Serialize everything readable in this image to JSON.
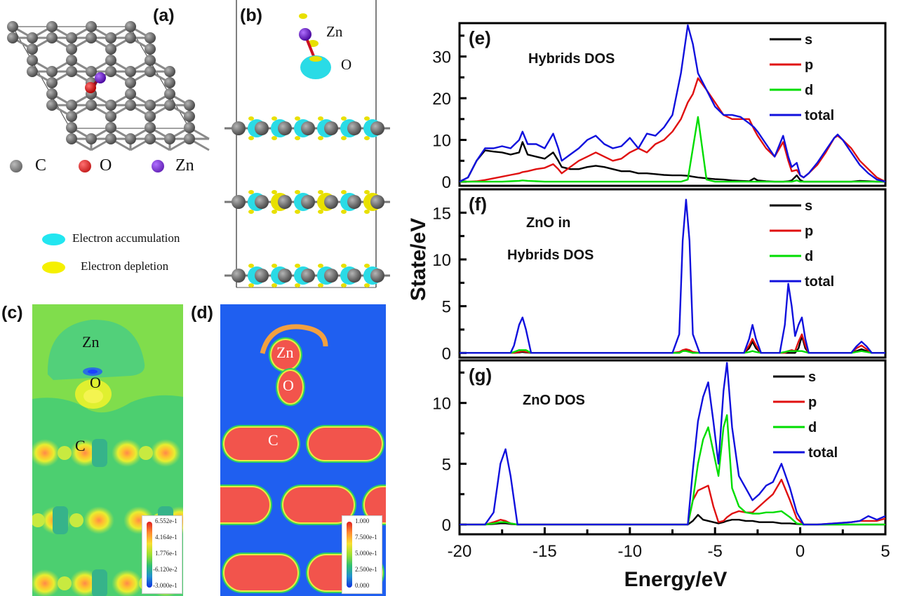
{
  "panels": {
    "a": {
      "label": "(a)",
      "legend": [
        {
          "symbol": "C",
          "color": "#6e6e6e"
        },
        {
          "symbol": "O",
          "color": "#e01010"
        },
        {
          "symbol": "Zn",
          "color": "#7a1fd0"
        }
      ]
    },
    "b": {
      "label": "(b)",
      "atom_labels": {
        "zn": "Zn",
        "o": "O"
      },
      "legend": [
        {
          "label": "Electron accumulation",
          "color": "#22e6f0"
        },
        {
          "label": "Electron depletion",
          "color": "#f5f000"
        }
      ]
    },
    "c": {
      "label": "(c)",
      "atom_labels": {
        "zn": "Zn",
        "o": "O",
        "c": "C"
      },
      "colorbar": {
        "ticks": [
          "6.552e-1",
          "4.164e-1",
          "1.776e-1",
          "-6.120e-2",
          "-3.000e-1"
        ]
      }
    },
    "d": {
      "label": "(d)",
      "atom_labels": {
        "zn": "Zn",
        "o": "O",
        "c": "C"
      },
      "colorbar": {
        "ticks": [
          "1.000",
          "7.500e-1",
          "5.000e-1",
          "2.500e-1",
          "0.000"
        ]
      }
    }
  },
  "chart_data": [
    {
      "type": "line",
      "panel": "(e)",
      "title": "Hybrids DOS",
      "xlabel": "Energy/eV",
      "ylabel": "State/eV",
      "xlim": [
        -20,
        5
      ],
      "ylim": [
        -1,
        38
      ],
      "yticks": [
        0,
        10,
        20,
        30
      ],
      "legend": [
        "s",
        "p",
        "d",
        "total"
      ],
      "legend_position": "top-right",
      "x": [
        -20,
        -19.5,
        -19,
        -18.5,
        -18,
        -17.5,
        -17,
        -16.5,
        -16.3,
        -16,
        -15.5,
        -15,
        -14.5,
        -14.2,
        -14,
        -13.5,
        -13,
        -12.5,
        -12,
        -11.5,
        -11,
        -10.5,
        -10,
        -9.5,
        -9,
        -8.5,
        -8,
        -7.5,
        -7,
        -6.6,
        -6.3,
        -6,
        -5.5,
        -5,
        -4.5,
        -4,
        -3.5,
        -3,
        -2.7,
        -2.5,
        -2,
        -1.5,
        -1,
        -0.7,
        -0.5,
        -0.2,
        0,
        0.2,
        0.5,
        1,
        1.5,
        2,
        2.2,
        2.5,
        3,
        3.5,
        4,
        4.5,
        5
      ],
      "series": [
        {
          "name": "s",
          "color": "#000000",
          "values": [
            0,
            1,
            5,
            7.5,
            7.2,
            7,
            6.5,
            7,
            9.5,
            6.5,
            6,
            5.5,
            7,
            5,
            3.5,
            3,
            3,
            3.5,
            3.8,
            3.5,
            3,
            2.5,
            2.5,
            2,
            2,
            1.8,
            1.6,
            1.5,
            1.5,
            1.4,
            1.2,
            1,
            0.8,
            0.6,
            0.5,
            0.3,
            0.2,
            0.1,
            0.8,
            0.3,
            0.1,
            0,
            0,
            0.1,
            0.3,
            1.5,
            0.4,
            0,
            0,
            0,
            0,
            0,
            0,
            0,
            0,
            0.2,
            0.1,
            0,
            0
          ]
        },
        {
          "name": "p",
          "color": "#e01010",
          "values": [
            0,
            0,
            0.1,
            0.4,
            0.8,
            1.2,
            1.6,
            2,
            2.3,
            2.5,
            3,
            3.3,
            4.2,
            3,
            2,
            3.5,
            5,
            6,
            7,
            6,
            5,
            5.5,
            7,
            8,
            7,
            9,
            10,
            12,
            15,
            19,
            21,
            24.8,
            22,
            19,
            16,
            15,
            15,
            15,
            12.5,
            11,
            8,
            6,
            9.5,
            5,
            2.5,
            2.8,
            1.5,
            1,
            2,
            4,
            7,
            10.5,
            11,
            10,
            8,
            5,
            3,
            1,
            0
          ]
        },
        {
          "name": "d",
          "color": "#00dd00",
          "values": [
            0,
            0,
            0,
            0,
            0,
            0,
            0.1,
            0.2,
            0.3,
            0.2,
            0.1,
            0,
            0,
            0,
            0,
            0,
            0,
            0,
            0,
            0,
            0,
            0,
            0,
            0,
            0,
            0,
            0,
            0,
            0,
            0.5,
            8,
            15.5,
            0.5,
            0,
            0,
            0,
            0,
            0,
            0,
            0,
            0,
            0,
            0,
            0,
            0,
            0.3,
            0,
            0,
            0,
            0,
            0,
            0,
            0,
            0,
            0,
            0,
            0,
            0,
            0
          ]
        },
        {
          "name": "total",
          "color": "#1010dd",
          "values": [
            0,
            1,
            5,
            8,
            8,
            8.5,
            8,
            10,
            12,
            9,
            9,
            8,
            11.5,
            8,
            5,
            6.5,
            8,
            10,
            11,
            9,
            8,
            8.5,
            10.5,
            8,
            11.5,
            11,
            13,
            16,
            26,
            37.5,
            33,
            26,
            22,
            18,
            16,
            16,
            15.5,
            14,
            13,
            12,
            9,
            6,
            11,
            6,
            3.5,
            4.5,
            1.5,
            1,
            2,
            4.5,
            7.5,
            10.5,
            11.3,
            10,
            7,
            4,
            2,
            0.5,
            0
          ]
        }
      ]
    },
    {
      "type": "line",
      "panel": "(f)",
      "title": "ZnO in Hybrids DOS",
      "xlabel": "Energy/eV",
      "ylabel": "State/eV",
      "xlim": [
        -20,
        5
      ],
      "ylim": [
        -0.5,
        17.5
      ],
      "yticks": [
        0,
        5,
        10,
        15
      ],
      "legend": [
        "s",
        "p",
        "d",
        "total"
      ],
      "legend_position": "top-right",
      "x": [
        -20,
        -17,
        -16.8,
        -16.5,
        -16.3,
        -16.1,
        -15.8,
        -7.5,
        -7.1,
        -6.9,
        -6.7,
        -6.5,
        -6.3,
        -5.9,
        -3.3,
        -3,
        -2.8,
        -2.6,
        -2.3,
        -1.2,
        -0.9,
        -0.7,
        -0.5,
        -0.3,
        -0.1,
        0.1,
        0.3,
        0.5,
        0.8,
        3,
        3.3,
        3.6,
        3.9,
        4.2,
        5
      ],
      "series": [
        {
          "name": "s",
          "color": "#000000",
          "values": [
            0,
            0,
            0,
            0.05,
            0.1,
            0.05,
            0,
            0,
            0,
            0.2,
            0.3,
            0.2,
            0,
            0,
            0,
            0.5,
            1.2,
            0.5,
            0,
            0,
            0,
            0,
            0,
            0,
            0.5,
            1.8,
            0.5,
            0,
            0,
            0,
            0.2,
            0.4,
            0.2,
            0,
            0
          ]
        },
        {
          "name": "p",
          "color": "#e01010",
          "values": [
            0,
            0,
            0,
            0.1,
            0.2,
            0.1,
            0,
            0,
            0.1,
            0.3,
            0.4,
            0.3,
            0.1,
            0,
            0,
            0.8,
            1.5,
            0.8,
            0,
            0,
            0,
            0.2,
            0.3,
            0.2,
            1.2,
            2,
            0.8,
            0,
            0,
            0,
            0.5,
            0.8,
            0.4,
            0,
            0
          ]
        },
        {
          "name": "d",
          "color": "#00dd00",
          "values": [
            0,
            0,
            0.1,
            0.3,
            0.3,
            0.3,
            0,
            0,
            0,
            0.2,
            0.2,
            0.1,
            0,
            0,
            0,
            0.1,
            0.2,
            0.1,
            0,
            0,
            0.1,
            0.2,
            0.2,
            0.2,
            0.2,
            0.2,
            0.1,
            0,
            0,
            0,
            0.1,
            0.2,
            0.1,
            0,
            0
          ]
        },
        {
          "name": "total",
          "color": "#1010dd",
          "values": [
            0,
            0,
            0.8,
            3,
            3.8,
            2.5,
            0,
            0,
            2,
            12,
            16.4,
            12,
            2,
            0,
            0,
            1.5,
            3,
            1.5,
            0,
            0,
            3,
            7.4,
            5,
            1.8,
            3,
            3.8,
            1.5,
            0,
            0,
            0,
            0.7,
            1.2,
            0.7,
            0,
            0
          ]
        }
      ]
    },
    {
      "type": "line",
      "panel": "(g)",
      "title": "ZnO DOS",
      "xlabel": "Energy/eV",
      "ylabel": "State/eV",
      "xlim": [
        -20,
        5
      ],
      "ylim": [
        -0.8,
        13.5
      ],
      "yticks": [
        0,
        5,
        10
      ],
      "xticks": [
        -20,
        -15,
        -10,
        -5,
        0,
        5
      ],
      "legend": [
        "s",
        "p",
        "d",
        "total"
      ],
      "legend_position": "top-right",
      "x": [
        -20,
        -18.5,
        -18,
        -17.6,
        -17.3,
        -17,
        -16.6,
        -16,
        -6.6,
        -6.3,
        -6,
        -5.7,
        -5.4,
        -5.1,
        -4.8,
        -4.5,
        -4.3,
        -4,
        -3.6,
        -3.2,
        -2.8,
        -2.4,
        -2,
        -1.6,
        -1.1,
        -0.6,
        -0.2,
        0.2,
        1,
        2,
        3,
        3.5,
        4,
        4.5,
        5
      ],
      "series": [
        {
          "name": "s",
          "color": "#000000",
          "values": [
            0,
            0,
            0.05,
            0.1,
            0.1,
            0.05,
            0,
            0,
            0,
            0.3,
            0.8,
            0.4,
            0.3,
            0.2,
            0.1,
            0.2,
            0.3,
            0.4,
            0.4,
            0.3,
            0.3,
            0.2,
            0.2,
            0.2,
            0.1,
            0.1,
            0.05,
            0,
            0,
            0,
            0,
            0,
            0,
            0,
            0
          ]
        },
        {
          "name": "p",
          "color": "#e01010",
          "values": [
            0,
            0,
            0.2,
            0.4,
            0.3,
            0.1,
            0,
            0,
            0,
            2,
            2.8,
            3,
            3.2,
            1.5,
            0.2,
            0.3,
            0.6,
            0.9,
            1.1,
            1,
            1,
            1.5,
            2,
            2.5,
            3.7,
            2,
            0.5,
            0,
            0,
            0.1,
            0.2,
            0.3,
            0.3,
            0.3,
            0.5
          ]
        },
        {
          "name": "d",
          "color": "#00dd00",
          "values": [
            0,
            0,
            0.1,
            0.2,
            0.2,
            0.1,
            0,
            0,
            0,
            2,
            5,
            7,
            8,
            6,
            4,
            8,
            9,
            3,
            1.5,
            1,
            0.9,
            0.9,
            1,
            1,
            1.1,
            0.6,
            0.1,
            0,
            0,
            0,
            0,
            0,
            0,
            0,
            0
          ]
        },
        {
          "name": "total",
          "color": "#1010dd",
          "values": [
            0,
            0,
            1,
            5,
            6.2,
            4,
            0,
            0,
            0,
            4.5,
            8.5,
            10.5,
            11.7,
            8.5,
            5,
            11,
            13.3,
            8,
            4,
            3,
            2,
            2.5,
            3.2,
            3.5,
            5,
            3,
            1,
            0,
            0,
            0.1,
            0.2,
            0.3,
            0.7,
            0.4,
            0.7
          ]
        }
      ]
    }
  ],
  "shared_axes": {
    "xlabel": "Energy/eV",
    "ylabel": "State/eV",
    "xticks": [
      "-20",
      "-15",
      "-10",
      "-5",
      "0",
      "5"
    ]
  }
}
